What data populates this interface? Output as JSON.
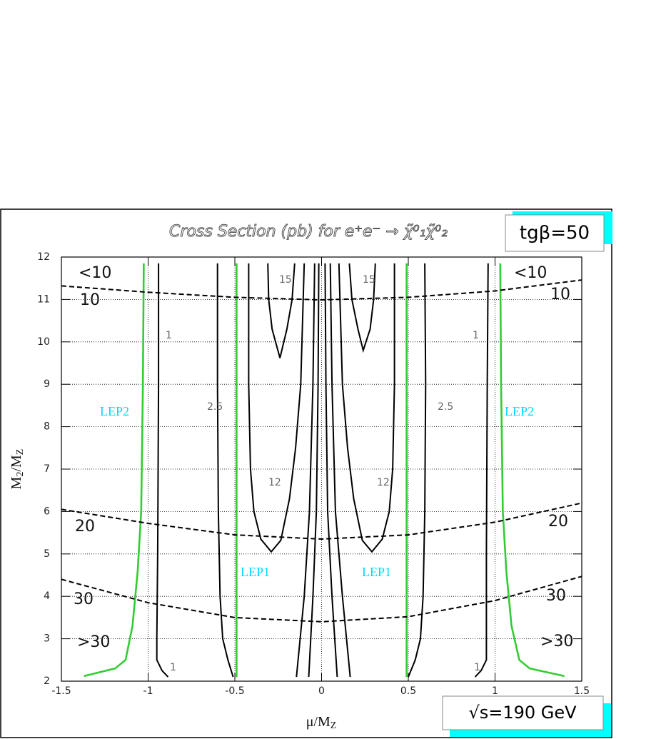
{
  "chart_data": {
    "type": "contour",
    "title": "Cross Section (pb) for e⁺e⁻ → χ̃⁰₁χ̃⁰₂",
    "box_top": "tgβ=50",
    "box_bottom": "√s=190 GeV",
    "x_label": [
      "μ/M",
      "Z"
    ],
    "y_label": [
      "M",
      "2",
      "/M",
      "Z"
    ],
    "xlim": [
      -1.5,
      1.5
    ],
    "ylim": [
      2,
      12
    ],
    "xticks": [
      -1.5,
      -1,
      -0.5,
      0,
      0.5,
      1,
      1.5
    ],
    "yticks": [
      2,
      3,
      4,
      5,
      6,
      7,
      8,
      9,
      10,
      11,
      12
    ],
    "grid": true,
    "annotations": [
      "<10",
      "10",
      "20",
      "30",
      ">30",
      "<10",
      "10",
      "20",
      "30",
      ">30"
    ],
    "series": [
      {
        "name": "1",
        "color": "#000000",
        "style": "solid",
        "x": [
          -0.94,
          -0.94,
          -0.945,
          -0.95,
          -0.95,
          -0.92,
          -0.885
        ],
        "values": [
          11.85,
          9,
          5,
          3,
          2.5,
          2.25,
          2.1
        ]
      },
      {
        "name": "1",
        "color": "#000000",
        "style": "solid",
        "x": [
          0.96,
          0.955,
          0.95,
          0.95,
          0.95,
          0.92,
          0.885
        ],
        "values": [
          11.85,
          9,
          5,
          3,
          2.5,
          2.25,
          2.1
        ]
      },
      {
        "name": "2.5",
        "color": "#000000",
        "style": "solid",
        "x": [
          -0.6,
          -0.6,
          -0.595,
          -0.585,
          -0.57,
          -0.54,
          -0.51
        ],
        "values": [
          11.85,
          9,
          6,
          4,
          3,
          2.5,
          2.1
        ]
      },
      {
        "name": "2.5",
        "color": "#000000",
        "style": "solid",
        "x": [
          0.595,
          0.6,
          0.595,
          0.585,
          0.57,
          0.54,
          0.5
        ],
        "values": [
          11.85,
          9,
          6,
          4,
          3,
          2.5,
          2.1
        ]
      },
      {
        "name": "12",
        "color": "#000000",
        "style": "solid",
        "x": [
          -0.42,
          -0.42,
          -0.41,
          -0.39,
          -0.35,
          -0.29,
          -0.235,
          -0.185,
          -0.15,
          -0.12,
          -0.1
        ],
        "values": [
          11.85,
          9,
          7,
          6,
          5.35,
          5.05,
          5.32,
          6.3,
          7.5,
          9,
          11.85
        ]
      },
      {
        "name": "12",
        "color": "#000000",
        "style": "solid",
        "x": [
          0.1,
          0.12,
          0.15,
          0.185,
          0.235,
          0.29,
          0.35,
          0.39,
          0.41,
          0.42,
          0.42
        ],
        "values": [
          11.85,
          9,
          7.5,
          6.3,
          5.32,
          5.05,
          5.35,
          6,
          7,
          9,
          11.85
        ]
      },
      {
        "name": "15",
        "color": "#000000",
        "style": "solid",
        "x": [
          -0.31,
          -0.305,
          -0.285,
          -0.24,
          -0.2,
          -0.17,
          -0.155
        ],
        "values": [
          11.85,
          11,
          10.3,
          9.62,
          10.3,
          11,
          11.85
        ]
      },
      {
        "name": "15",
        "color": "#000000",
        "style": "solid",
        "x": [
          0.16,
          0.175,
          0.21,
          0.24,
          0.28,
          0.3,
          0.31
        ],
        "values": [
          11.85,
          11,
          10.3,
          9.8,
          10.3,
          11,
          11.85
        ]
      },
      {
        "color": "#000000",
        "style": "solid",
        "x": [
          -0.04,
          -0.05,
          -0.07,
          -0.1,
          -0.145
        ],
        "values": [
          11.85,
          9,
          6,
          4,
          2.1
        ]
      },
      {
        "color": "#000000",
        "style": "solid",
        "x": [
          -0.016,
          -0.02,
          -0.03,
          -0.05,
          -0.074
        ],
        "values": [
          11.85,
          9,
          6,
          4,
          2.1
        ]
      },
      {
        "color": "#000000",
        "style": "solid",
        "x": [
          0.02,
          0.025,
          0.035,
          0.06,
          0.09
        ],
        "values": [
          11.85,
          9,
          6,
          4,
          2.1
        ]
      },
      {
        "color": "#000000",
        "style": "solid",
        "x": [
          0.05,
          0.06,
          0.08,
          0.12,
          0.165
        ],
        "values": [
          11.85,
          9,
          6,
          4,
          2.1
        ]
      },
      {
        "name": "LEP2",
        "color": "#33cc33",
        "label_color": "#00d8ff",
        "style": "solid",
        "x": [
          -1.025,
          -1.03,
          -1.04,
          -1.06,
          -1.09,
          -1.13,
          -1.19,
          -1.37
        ],
        "values": [
          11.85,
          9,
          6,
          4.6,
          3.3,
          2.5,
          2.3,
          2.12
        ]
      },
      {
        "name": "LEP2",
        "color": "#33cc33",
        "label_color": "#00d8ff",
        "style": "solid",
        "x": [
          1.03,
          1.035,
          1.045,
          1.065,
          1.095,
          1.14,
          1.2,
          1.4
        ],
        "values": [
          11.85,
          9,
          6,
          4.6,
          3.3,
          2.5,
          2.3,
          2.12
        ]
      },
      {
        "name": "LEP1",
        "color": "#33cc33",
        "label_color": "#00d8ff",
        "style": "solid",
        "x": [
          -0.49,
          -0.49
        ],
        "values": [
          11.85,
          2.1
        ]
      },
      {
        "name": "LEP1",
        "color": "#33cc33",
        "label_color": "#00d8ff",
        "style": "solid",
        "x": [
          0.49,
          0.49
        ],
        "values": [
          11.85,
          2.1
        ]
      },
      {
        "color": "#000000",
        "style": "dashed",
        "x": [
          -1.5,
          -1,
          -0.5,
          0,
          0.5,
          1,
          1.5
        ],
        "values": [
          11.32,
          11.17,
          11.05,
          10.99,
          11.05,
          11.2,
          11.46
        ]
      },
      {
        "color": "#000000",
        "style": "dashed",
        "x": [
          -1.5,
          -1,
          -0.5,
          0,
          0.5,
          1,
          1.5
        ],
        "values": [
          6.05,
          5.72,
          5.45,
          5.35,
          5.45,
          5.75,
          6.2
        ]
      },
      {
        "color": "#000000",
        "style": "dashed",
        "x": [
          -1.5,
          -1,
          -0.5,
          0,
          0.5,
          1,
          1.5
        ],
        "values": [
          4.4,
          3.85,
          3.5,
          3.4,
          3.52,
          3.9,
          4.47
        ]
      }
    ]
  }
}
